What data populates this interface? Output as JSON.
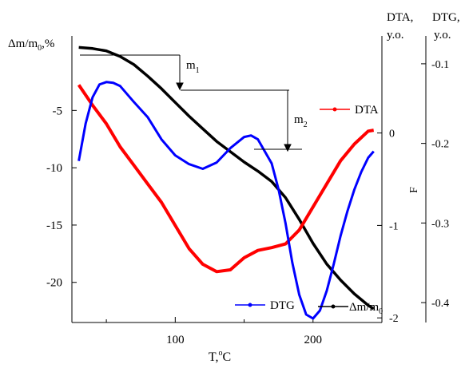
{
  "chart_data": {
    "type": "line",
    "xlabel": "T,°C",
    "x_ticks": [
      100,
      200
    ],
    "xlim": [
      25,
      250
    ],
    "axes": {
      "left": {
        "label": "Δm/m0,%",
        "ticks": [
          -5,
          -10,
          -15,
          -20
        ],
        "tick_labels": [
          "-5",
          "-10",
          "-15",
          "-20"
        ],
        "ylim": [
          -23.5,
          1.5
        ]
      },
      "dta": {
        "label": "DTA, y.o.",
        "ticks": [
          0,
          -1,
          -2
        ],
        "tick_labels": [
          "0",
          "-1",
          "-2"
        ],
        "ylim": [
          -2.05,
          1.05
        ]
      },
      "dtg": {
        "label": "DTG, y.o.",
        "ticks": [
          -0.1,
          -0.2,
          -0.3,
          -0.4
        ],
        "tick_labels": [
          "-0.1",
          "-0.2",
          "-0.3",
          "-0.4"
        ],
        "ylim": [
          -0.425,
          -0.065
        ]
      }
    },
    "series": [
      {
        "name": "Δm/m0",
        "axis": "left",
        "color": "#000000",
        "x": [
          30,
          40,
          50,
          60,
          70,
          80,
          90,
          100,
          110,
          120,
          130,
          140,
          150,
          160,
          170,
          180,
          190,
          200,
          210,
          220,
          230,
          240,
          244
        ],
        "y": [
          0.5,
          0.4,
          0.2,
          -0.3,
          -1.0,
          -2.0,
          -3.1,
          -4.3,
          -5.5,
          -6.6,
          -7.7,
          -8.6,
          -9.5,
          -10.3,
          -11.2,
          -12.6,
          -14.5,
          -16.6,
          -18.4,
          -19.8,
          -21.0,
          -22.0,
          -22.3
        ]
      },
      {
        "name": "DTA",
        "axis": "dta",
        "color": "#ff0000",
        "x": [
          30,
          40,
          50,
          60,
          70,
          80,
          90,
          100,
          110,
          120,
          130,
          140,
          150,
          160,
          170,
          180,
          190,
          200,
          210,
          220,
          230,
          240,
          244
        ],
        "y": [
          0.52,
          0.3,
          0.1,
          -0.15,
          -0.35,
          -0.55,
          -0.75,
          -1.0,
          -1.25,
          -1.42,
          -1.5,
          -1.48,
          -1.35,
          -1.27,
          -1.24,
          -1.2,
          -1.05,
          -0.8,
          -0.55,
          -0.3,
          -0.12,
          0.02,
          0.03
        ]
      },
      {
        "name": "DTG",
        "axis": "dtg",
        "color": "#0000ff",
        "x": [
          30,
          35,
          40,
          45,
          50,
          55,
          60,
          70,
          80,
          90,
          100,
          110,
          120,
          130,
          140,
          150,
          155,
          160,
          170,
          175,
          180,
          185,
          190,
          195,
          200,
          205,
          210,
          215,
          220,
          225,
          230,
          235,
          240,
          244
        ],
        "y": [
          -0.222,
          -0.175,
          -0.142,
          -0.126,
          -0.123,
          -0.124,
          -0.128,
          -0.148,
          -0.167,
          -0.195,
          -0.215,
          -0.226,
          -0.232,
          -0.224,
          -0.206,
          -0.192,
          -0.19,
          -0.195,
          -0.225,
          -0.258,
          -0.3,
          -0.35,
          -0.39,
          -0.415,
          -0.42,
          -0.41,
          -0.385,
          -0.352,
          -0.316,
          -0.285,
          -0.258,
          -0.236,
          -0.218,
          -0.21
        ]
      }
    ],
    "annotations": [
      {
        "text": "m",
        "sub": "1"
      },
      {
        "text": "m",
        "sub": "2"
      },
      {
        "text": "F"
      },
      {
        "text": "y.o."
      }
    ],
    "legend": [
      {
        "name": "DTA",
        "color": "#ff0000"
      },
      {
        "name": "DTG",
        "color": "#0000ff"
      },
      {
        "name": "Δm/m",
        "sub": "0",
        "color": "#000000"
      }
    ]
  }
}
